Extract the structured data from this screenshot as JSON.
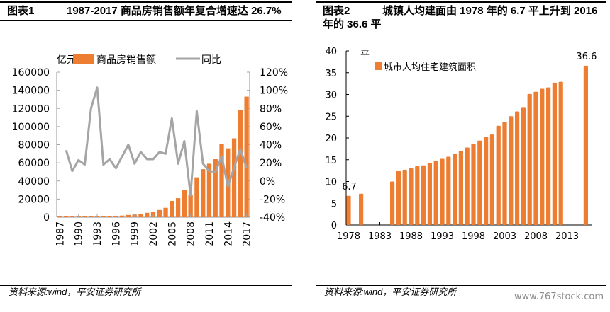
{
  "figures": [
    {
      "label": "图表1",
      "title": "1987-2017 商品房销售额年复合增速达 26.7%",
      "source": "资料来源:wind，平安证券研究所"
    },
    {
      "label": "图表2",
      "title_line1": "城镇人均建面由 1978 年的 6.7 平上升到 2016",
      "title_line2": "年的 36.6 平",
      "source": "资料来源:wind，平安证券研究所"
    }
  ],
  "watermark": "www.767stock.com",
  "chart_data": [
    {
      "type": "bar+line",
      "title": "1987-2017 商品房销售额年复合增速达 26.7%",
      "ylabel": "亿元",
      "ylim": [
        0,
        160000
      ],
      "yticks": [
        "0",
        "20000",
        "40000",
        "60000",
        "80000",
        "100000",
        "120000",
        "140000",
        "160000"
      ],
      "y2lim": [
        -40,
        120
      ],
      "y2ticks": [
        "-40%",
        "-20%",
        "0%",
        "20%",
        "40%",
        "60%",
        "80%",
        "100%",
        "120%"
      ],
      "xtick_labels": [
        "1987",
        "1990",
        "1993",
        "1996",
        "1999",
        "2002",
        "2005",
        "2008",
        "2011",
        "2014",
        "2017"
      ],
      "legend_position": "top",
      "categories": [
        "1987",
        "1988",
        "1989",
        "1990",
        "1991",
        "1992",
        "1993",
        "1994",
        "1995",
        "1996",
        "1997",
        "1998",
        "1999",
        "2000",
        "2001",
        "2002",
        "2003",
        "2004",
        "2005",
        "2006",
        "2007",
        "2008",
        "2009",
        "2010",
        "2011",
        "2012",
        "2013",
        "2014",
        "2015",
        "2016",
        "2017"
      ],
      "series": [
        {
          "name": "商品房销售额",
          "kind": "bar",
          "axis": "left",
          "color": "#ED7D31",
          "values": [
            110,
            150,
            160,
            220,
            240,
            430,
            860,
            1020,
            1260,
            1430,
            1800,
            2500,
            2990,
            3940,
            4860,
            6030,
            7960,
            10380,
            18000,
            21000,
            30000,
            25000,
            44000,
            53000,
            59000,
            64000,
            81000,
            76000,
            87000,
            118000,
            133000
          ]
        },
        {
          "name": "同比",
          "kind": "line",
          "axis": "right",
          "unit": "%",
          "color": "#A5A5A5",
          "values": [
            null,
            34,
            11,
            23,
            18,
            80,
            103,
            18,
            24,
            14,
            27,
            40,
            19,
            32,
            24,
            24,
            32,
            30,
            69,
            19,
            44,
            -16,
            77,
            19,
            11,
            10,
            27,
            -6,
            15,
            35,
            14
          ]
        }
      ]
    },
    {
      "type": "bar",
      "title": "城镇人均建面由 1978 年的 6.7 平上升到 2016 年的 36.6 平",
      "ylabel": "平",
      "ylim": [
        0,
        40
      ],
      "yticks": [
        "0",
        "5",
        "10",
        "15",
        "20",
        "25",
        "30",
        "35",
        "40"
      ],
      "xtick_labels": [
        "1978",
        "1983",
        "1988",
        "1993",
        "1998",
        "2003",
        "2008",
        "2013"
      ],
      "legend_position": "top-left",
      "series": [
        {
          "name": "城市人均住宅建筑面积",
          "color": "#ED7D31",
          "x": [
            1978,
            1980,
            1985,
            1986,
            1987,
            1988,
            1989,
            1990,
            1991,
            1992,
            1993,
            1994,
            1995,
            1996,
            1997,
            1998,
            1999,
            2000,
            2001,
            2002,
            2003,
            2004,
            2005,
            2006,
            2007,
            2008,
            2009,
            2010,
            2011,
            2012,
            2016
          ],
          "values": [
            6.7,
            7.2,
            10.0,
            12.4,
            12.7,
            13.0,
            13.5,
            13.7,
            14.2,
            14.8,
            15.2,
            15.7,
            16.3,
            17.0,
            17.8,
            18.7,
            19.4,
            20.3,
            20.8,
            22.8,
            23.7,
            25.0,
            26.1,
            27.1,
            30.1,
            30.6,
            31.3,
            31.6,
            32.7,
            32.9,
            36.6
          ]
        }
      ],
      "data_labels": [
        {
          "x": 1978,
          "text": "6.7"
        },
        {
          "x": 2016,
          "text": "36.6"
        }
      ]
    }
  ]
}
